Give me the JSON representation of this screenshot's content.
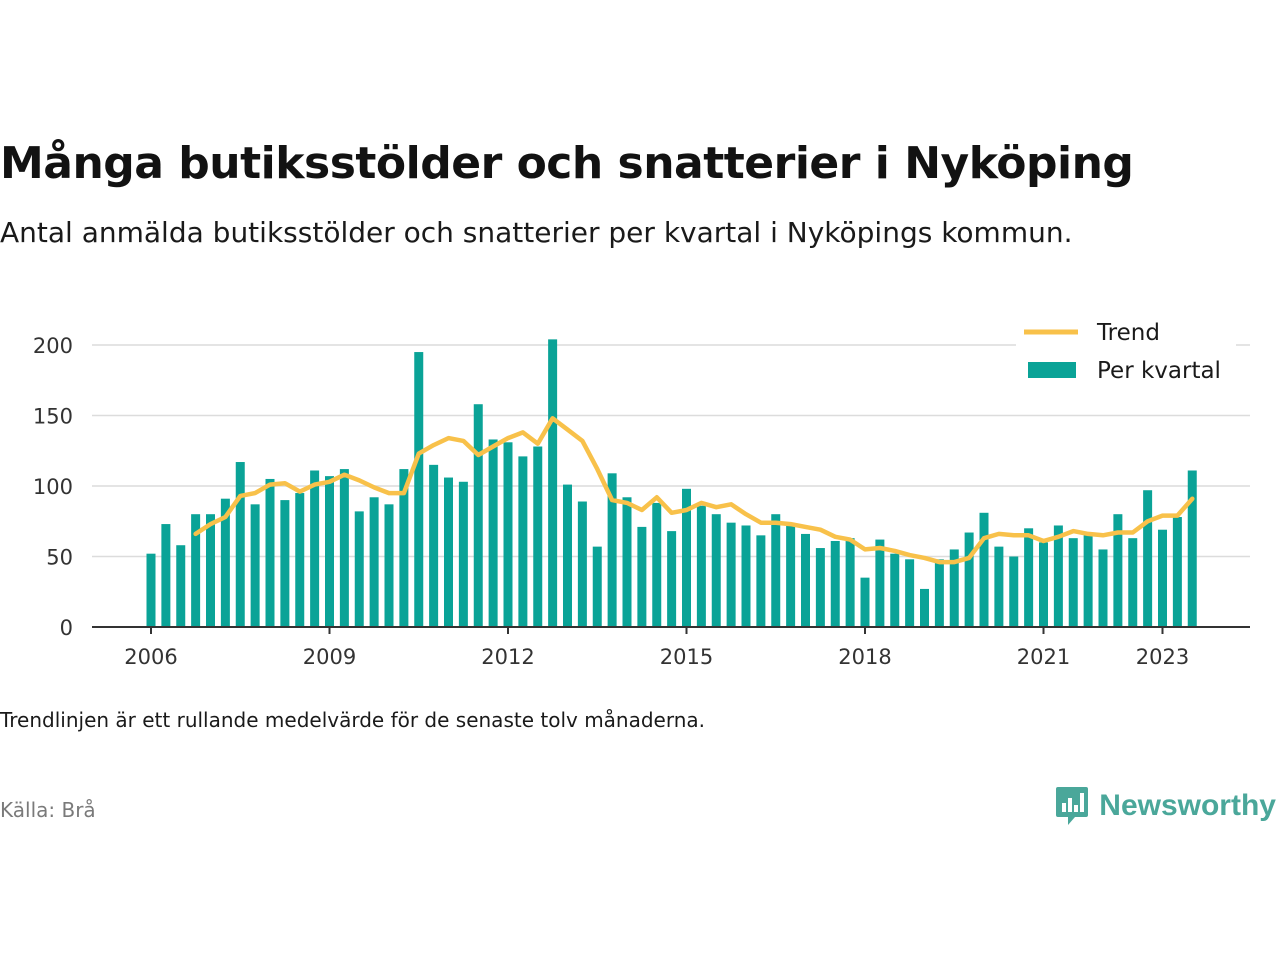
{
  "title": "Många butiksstölder och snatterier i Nyköping",
  "subtitle": "Antal anmälda butiksstölder och snatterier per kvartal i Nyköpings kommun.",
  "note": "Trendlinjen är ett rullande medelvärde för de senaste tolv månaderna.",
  "source": "Källa: Brå",
  "brand": {
    "name": "Newsworthy",
    "icon": "newsworthy-logo-icon",
    "color": "#4aa79a"
  },
  "colors": {
    "bar": "#0aa397",
    "trend": "#f8c14a",
    "grid": "#dcdcdc",
    "axis": "#333333"
  },
  "chart_data": {
    "type": "bar",
    "title": "Många butiksstölder och snatterier i Nyköping",
    "xlabel": "",
    "ylabel": "",
    "ylim": [
      0,
      210
    ],
    "yticks": [
      0,
      50,
      100,
      150,
      200
    ],
    "xticks": [
      "2006",
      "2009",
      "2012",
      "2015",
      "2018",
      "2021",
      "2023"
    ],
    "grid": true,
    "legend_position": "top-right",
    "categories": [
      "2006 Q1",
      "2006 Q2",
      "2006 Q3",
      "2006 Q4",
      "2007 Q1",
      "2007 Q2",
      "2007 Q3",
      "2007 Q4",
      "2008 Q1",
      "2008 Q2",
      "2008 Q3",
      "2008 Q4",
      "2009 Q1",
      "2009 Q2",
      "2009 Q3",
      "2009 Q4",
      "2010 Q1",
      "2010 Q2",
      "2010 Q3",
      "2010 Q4",
      "2011 Q1",
      "2011 Q2",
      "2011 Q3",
      "2011 Q4",
      "2012 Q1",
      "2012 Q2",
      "2012 Q3",
      "2012 Q4",
      "2013 Q1",
      "2013 Q2",
      "2013 Q3",
      "2013 Q4",
      "2014 Q1",
      "2014 Q2",
      "2014 Q3",
      "2014 Q4",
      "2015 Q1",
      "2015 Q2",
      "2015 Q3",
      "2015 Q4",
      "2016 Q1",
      "2016 Q2",
      "2016 Q3",
      "2016 Q4",
      "2017 Q1",
      "2017 Q2",
      "2017 Q3",
      "2017 Q4",
      "2018 Q1",
      "2018 Q2",
      "2018 Q3",
      "2018 Q4",
      "2019 Q1",
      "2019 Q2",
      "2019 Q3",
      "2019 Q4",
      "2020 Q1",
      "2020 Q2",
      "2020 Q3",
      "2020 Q4",
      "2021 Q1",
      "2021 Q2",
      "2021 Q3",
      "2021 Q4",
      "2022 Q1",
      "2022 Q2",
      "2022 Q3",
      "2022 Q4",
      "2023 Q1",
      "2023 Q2",
      "2023 Q3"
    ],
    "series": [
      {
        "name": "Per kvartal",
        "type": "bar",
        "values": [
          52,
          73,
          58,
          80,
          80,
          91,
          117,
          87,
          105,
          90,
          95,
          111,
          107,
          112,
          82,
          92,
          87,
          112,
          195,
          115,
          106,
          103,
          158,
          133,
          131,
          121,
          128,
          204,
          101,
          89,
          57,
          109,
          92,
          71,
          88,
          68,
          98,
          86,
          80,
          74,
          72,
          65,
          80,
          72,
          66,
          56,
          61,
          63,
          35,
          62,
          52,
          48,
          27,
          48,
          55,
          67,
          81,
          57,
          50,
          70,
          60,
          72,
          63,
          65,
          55,
          80,
          63,
          97,
          69,
          78,
          111
        ]
      },
      {
        "name": "Trend",
        "type": "line",
        "values": [
          null,
          null,
          null,
          66,
          73,
          78,
          93,
          95,
          101,
          102,
          96,
          101,
          103,
          108,
          104,
          99,
          95,
          95,
          123,
          129,
          134,
          132,
          122,
          128,
          134,
          138,
          130,
          148,
          140,
          132,
          112,
          90,
          88,
          83,
          92,
          81,
          83,
          88,
          85,
          87,
          80,
          74,
          74,
          73,
          71,
          69,
          64,
          62,
          55,
          56,
          54,
          51,
          49,
          46,
          46,
          49,
          63,
          66,
          65,
          65,
          61,
          64,
          68,
          66,
          65,
          67,
          67,
          75,
          79,
          79,
          91
        ]
      }
    ]
  }
}
